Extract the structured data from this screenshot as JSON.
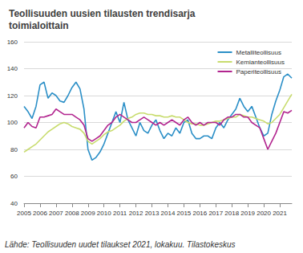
{
  "chart_data": {
    "type": "line",
    "title": "Teollisuuden uusien tilausten trendisarja\ntoimialoittain",
    "annotations": [
      "Lähde: Teollisuuden uudet tilaukset 2021, lokakuu. Tilastokeskus"
    ],
    "x": [
      2005,
      2005.25,
      2005.5,
      2005.75,
      2006,
      2006.25,
      2006.5,
      2006.75,
      2007,
      2007.25,
      2007.5,
      2007.75,
      2008,
      2008.25,
      2008.5,
      2008.75,
      2009,
      2009.25,
      2009.5,
      2009.75,
      2010,
      2010.25,
      2010.5,
      2010.75,
      2011,
      2011.25,
      2011.5,
      2011.75,
      2012,
      2012.25,
      2012.5,
      2012.75,
      2013,
      2013.25,
      2013.5,
      2013.75,
      2014,
      2014.25,
      2014.5,
      2014.75,
      2015,
      2015.25,
      2015.5,
      2015.75,
      2016,
      2016.25,
      2016.5,
      2016.75,
      2017,
      2017.25,
      2017.5,
      2017.75,
      2018,
      2018.25,
      2018.5,
      2018.75,
      2019,
      2019.25,
      2019.5,
      2019.75,
      2020,
      2020.25,
      2020.5,
      2020.75,
      2021,
      2021.25,
      2021.5,
      2021.75
    ],
    "series": [
      {
        "name": "Metalliteollisuus",
        "color": "#2b8fc7",
        "values": [
          112,
          108,
          103,
          112,
          128,
          130,
          118,
          122,
          120,
          116,
          115,
          120,
          126,
          130,
          125,
          110,
          80,
          72,
          74,
          78,
          84,
          92,
          100,
          108,
          100,
          115,
          102,
          96,
          90,
          100,
          94,
          92,
          98,
          102,
          94,
          88,
          92,
          90,
          96,
          92,
          100,
          102,
          92,
          88,
          88,
          90,
          90,
          88,
          96,
          100,
          96,
          102,
          106,
          110,
          118,
          112,
          108,
          112,
          104,
          96,
          90,
          92,
          106,
          116,
          124,
          134,
          136,
          133
        ]
      },
      {
        "name": "Kemianteollisuus",
        "color": "#c8dc6e",
        "values": [
          78,
          80,
          82,
          84,
          87,
          90,
          93,
          95,
          97,
          99,
          100,
          99,
          97,
          96,
          95,
          92,
          86,
          84,
          86,
          88,
          91,
          93,
          94,
          96,
          98,
          101,
          103,
          104,
          106,
          107,
          107,
          106,
          106,
          105,
          105,
          104,
          104,
          105,
          104,
          104,
          102,
          100,
          99,
          99,
          98,
          98,
          99,
          100,
          101,
          101,
          102,
          103,
          104,
          104,
          106,
          105,
          104,
          104,
          103,
          102,
          101,
          99,
          100,
          103,
          106,
          111,
          116,
          121
        ]
      },
      {
        "name": "Paperiteollisuus",
        "color": "#b2258f",
        "values": [
          96,
          100,
          97,
          96,
          104,
          104,
          105,
          106,
          110,
          108,
          106,
          106,
          106,
          104,
          102,
          98,
          88,
          86,
          88,
          90,
          94,
          98,
          100,
          104,
          106,
          104,
          102,
          100,
          100,
          102,
          104,
          102,
          100,
          98,
          100,
          98,
          100,
          102,
          100,
          98,
          102,
          104,
          100,
          98,
          100,
          98,
          100,
          100,
          100,
          98,
          102,
          104,
          104,
          106,
          106,
          104,
          104,
          100,
          98,
          96,
          88,
          80,
          86,
          92,
          100,
          108,
          107,
          109
        ]
      }
    ],
    "xlim": [
      2005,
      2021.75
    ],
    "xticks": [
      2005,
      2006,
      2007,
      2008,
      2009,
      2010,
      2011,
      2012,
      2013,
      2014,
      2015,
      2016,
      2017,
      2018,
      2019,
      2020,
      2021
    ],
    "ylim": [
      40,
      160
    ],
    "yticks": [
      40,
      60,
      80,
      100,
      120,
      140,
      160
    ],
    "grid": true,
    "legend": "top-right"
  }
}
